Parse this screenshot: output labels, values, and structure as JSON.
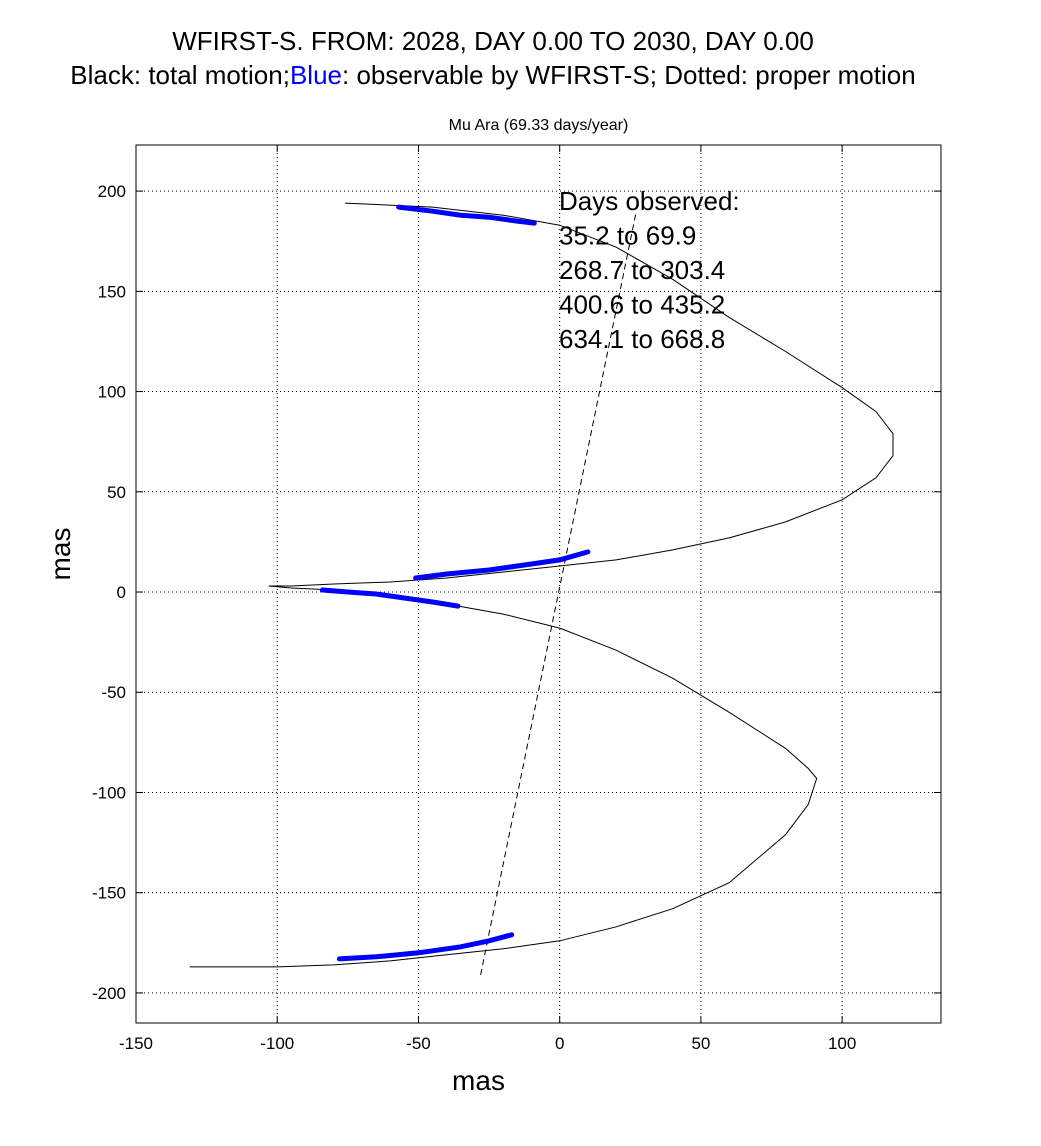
{
  "header": {
    "title_line1": "WFIRST-S. FROM: 2028, DAY 0.00 TO 2030, DAY 0.00",
    "title_line2_a": "Black: total motion;",
    "title_line2_blue": "Blue",
    "title_line2_b": ": observable by WFIRST-S; Dotted: proper motion"
  },
  "chart_data": {
    "type": "line",
    "title": "Mu Ara (69.33 days/year)",
    "xlabel": "mas",
    "ylabel": "mas",
    "xlim": [
      -150,
      135
    ],
    "ylim": [
      -215,
      223
    ],
    "xticks": [
      -150,
      -100,
      -50,
      0,
      50,
      100
    ],
    "yticks": [
      -200,
      -150,
      -100,
      -50,
      0,
      50,
      100,
      150,
      200
    ],
    "xtick_labels": [
      "-150",
      "-100",
      "-50",
      "0",
      "50",
      "100"
    ],
    "ytick_labels": [
      "-200",
      "-150",
      "-100",
      "-50",
      "0",
      "50",
      "100",
      "150",
      "200"
    ],
    "grid": true,
    "colors": {
      "total": "#000000",
      "observable": "#0000ff",
      "proper": "#000000"
    },
    "series": [
      {
        "name": "total motion",
        "style": "solid-thin",
        "x": [
          -76,
          -60,
          -40,
          -20,
          0,
          20,
          40,
          60,
          80,
          100,
          112,
          118,
          112,
          100,
          80,
          60,
          40,
          20,
          0,
          -20,
          -40,
          -60,
          -80,
          -95,
          -103,
          -95,
          -80,
          -60,
          -40,
          -20,
          0,
          20,
          40,
          60,
          80,
          91,
          80,
          60,
          40,
          20,
          0,
          -20,
          -40,
          -60,
          -80,
          -100,
          -115,
          -131
        ],
        "y": [
          194,
          193,
          190,
          183,
          174,
          162,
          147,
          130,
          110,
          87,
          65,
          98,
          127,
          148,
          168,
          184,
          197,
          207,
          214,
          218,
          220,
          221,
          221,
          219,
          3,
          3,
          1,
          -3,
          -9,
          -17,
          -24,
          -33,
          -45,
          -61,
          -82,
          -92,
          -123,
          -146,
          -157,
          -165,
          -172,
          -176,
          -180,
          -183,
          -185,
          -186,
          -187,
          -187
        ]
      },
      {
        "name": "observable by WFIRST-S",
        "style": "thick",
        "segments": [
          {
            "x": [
              -57,
              -45,
              -35,
              -25,
              -15,
              -9
            ],
            "y": [
              192,
              190,
              188,
              187,
              185,
              184
            ]
          },
          {
            "x": [
              -51,
              -40,
              -25,
              -10,
              0,
              10
            ],
            "y": [
              7,
              9,
              11,
              14,
              16,
              20
            ]
          },
          {
            "x": [
              -84,
              -75,
              -65,
              -55,
              -45,
              -36
            ],
            "y": [
              1,
              0,
              -1,
              -3,
              -5,
              -7
            ]
          },
          {
            "x": [
              -78,
              -65,
              -50,
              -35,
              -25,
              -17
            ],
            "y": [
              -183,
              -182,
              -180,
              -177,
              -174,
              -171
            ]
          }
        ]
      },
      {
        "name": "proper motion",
        "style": "dashed",
        "x": [
          -28,
          27
        ],
        "y": [
          -191,
          189
        ]
      }
    ],
    "annotations": [
      "Days observed:",
      "35.2 to 69.9",
      "268.7 to 303.4",
      "400.6 to 435.2",
      "634.1 to 668.8"
    ]
  }
}
